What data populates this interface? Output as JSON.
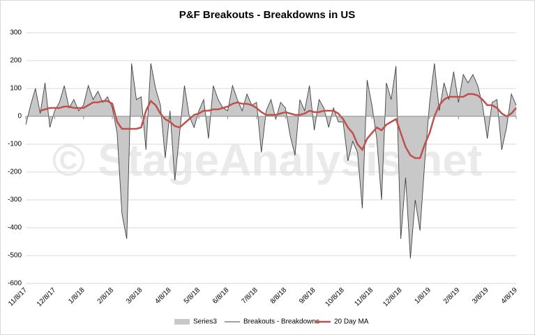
{
  "chart_data": {
    "type": "area-line",
    "title": "P&F Breakouts - Breakdowns in US",
    "watermark": "© StageAnalysis.net",
    "categories": [
      "11/8/17",
      null,
      null,
      null,
      null,
      null,
      "12/8/17",
      null,
      null,
      null,
      null,
      null,
      "1/8/18",
      null,
      null,
      null,
      null,
      null,
      "2/8/18",
      null,
      null,
      null,
      null,
      null,
      "3/8/18",
      null,
      null,
      null,
      null,
      null,
      "4/8/18",
      null,
      null,
      null,
      null,
      null,
      "5/8/18",
      null,
      null,
      null,
      null,
      null,
      "6/8/18",
      null,
      null,
      null,
      null,
      null,
      "7/8/18",
      null,
      null,
      null,
      null,
      null,
      "8/8/18",
      null,
      null,
      null,
      null,
      null,
      "9/8/18",
      null,
      null,
      null,
      null,
      null,
      "10/8/18",
      null,
      null,
      null,
      null,
      null,
      "11/8/18",
      null,
      null,
      null,
      null,
      null,
      "12/8/18",
      null,
      null,
      null,
      null,
      null,
      "1/8/19",
      null,
      null,
      null,
      null,
      null,
      "2/8/19",
      null,
      null,
      null,
      null,
      null,
      "3/8/19",
      null,
      null,
      null,
      null,
      null,
      "4/8/19"
    ],
    "series": [
      {
        "name": "Series3",
        "kind": "area",
        "color": "#c8c8c8",
        "values": [
          -30,
          40,
          100,
          10,
          120,
          -40,
          20,
          50,
          110,
          30,
          60,
          20,
          40,
          110,
          60,
          90,
          50,
          70,
          30,
          -60,
          -350,
          -440,
          190,
          60,
          70,
          -120,
          190,
          100,
          40,
          -150,
          20,
          -230,
          -60,
          110,
          0,
          -40,
          20,
          60,
          -80,
          110,
          60,
          30,
          20,
          110,
          60,
          20,
          80,
          40,
          50,
          -130,
          20,
          60,
          -10,
          50,
          30,
          -70,
          -140,
          60,
          20,
          110,
          -50,
          60,
          30,
          -40,
          30,
          -20,
          -20,
          -160,
          -90,
          -130,
          -330,
          130,
          40,
          -80,
          -300,
          120,
          60,
          180,
          -440,
          -220,
          -510,
          -300,
          -410,
          -160,
          50,
          190,
          20,
          120,
          60,
          160,
          50,
          150,
          120,
          150,
          110,
          40,
          -80,
          50,
          60,
          -120,
          -40,
          80,
          40
        ]
      },
      {
        "name": "Breakouts - Breakdowns",
        "kind": "line",
        "color": "#404040",
        "values": [
          -30,
          40,
          100,
          10,
          120,
          -40,
          20,
          50,
          110,
          30,
          60,
          20,
          40,
          110,
          60,
          90,
          50,
          70,
          30,
          -60,
          -350,
          -440,
          190,
          60,
          70,
          -120,
          190,
          100,
          40,
          -150,
          20,
          -230,
          -60,
          110,
          0,
          -40,
          20,
          60,
          -80,
          110,
          60,
          30,
          20,
          110,
          60,
          20,
          80,
          40,
          50,
          -130,
          20,
          60,
          -10,
          50,
          30,
          -70,
          -140,
          60,
          20,
          110,
          -50,
          60,
          30,
          -40,
          30,
          -20,
          -20,
          -160,
          -90,
          -130,
          -330,
          130,
          40,
          -80,
          -300,
          120,
          60,
          180,
          -440,
          -220,
          -510,
          -300,
          -410,
          -160,
          50,
          190,
          20,
          120,
          60,
          160,
          50,
          150,
          120,
          150,
          110,
          40,
          -80,
          50,
          60,
          -120,
          -40,
          80,
          40
        ]
      },
      {
        "name": "20 Day MA",
        "kind": "line",
        "color": "#c0504d",
        "values": [
          null,
          null,
          null,
          20,
          25,
          30,
          30,
          30,
          35,
          35,
          30,
          30,
          30,
          40,
          50,
          50,
          55,
          55,
          45,
          -20,
          -45,
          -45,
          -45,
          -45,
          -40,
          20,
          55,
          40,
          10,
          -10,
          -20,
          -35,
          -40,
          -25,
          -10,
          5,
          10,
          20,
          20,
          25,
          25,
          30,
          35,
          45,
          50,
          45,
          45,
          40,
          30,
          15,
          5,
          5,
          5,
          10,
          15,
          10,
          5,
          5,
          10,
          20,
          15,
          15,
          20,
          20,
          20,
          10,
          -10,
          -40,
          -60,
          -100,
          -120,
          -80,
          -60,
          -40,
          -50,
          -30,
          -20,
          -10,
          -60,
          -110,
          -140,
          -150,
          -150,
          -100,
          -60,
          0,
          40,
          60,
          70,
          70,
          70,
          70,
          80,
          80,
          75,
          60,
          40,
          40,
          30,
          10,
          0,
          10,
          30
        ]
      }
    ],
    "ylim": [
      -600,
      300
    ],
    "yticks": [
      300,
      200,
      100,
      0,
      -100,
      -200,
      -300,
      -400,
      -500,
      -600
    ],
    "grid": true,
    "legend": "bottom"
  }
}
